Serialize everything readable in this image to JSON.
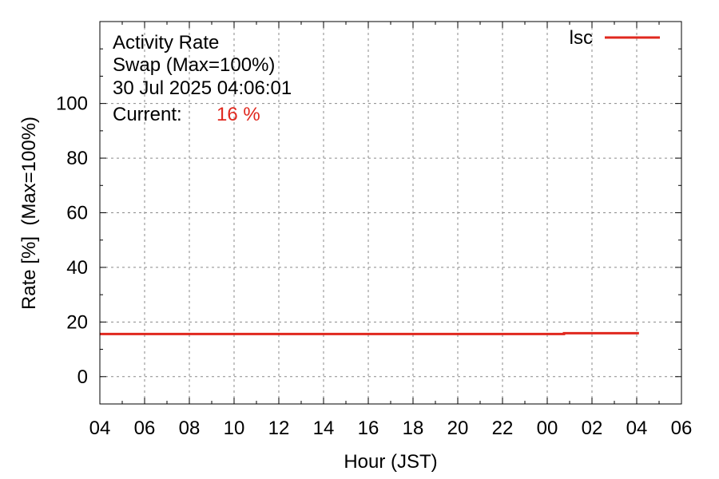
{
  "chart_data": {
    "type": "line",
    "title_lines": [
      "Activity Rate",
      "Swap (Max=100%)",
      "30 Jul 2025 04:06:01"
    ],
    "current_label": "Current:",
    "current_value": "16 %",
    "xlabel": "Hour (JST)",
    "ylabel": "Rate [%]  (Max=100%)",
    "x_tick_labels": [
      "04",
      "06",
      "08",
      "10",
      "12",
      "14",
      "16",
      "18",
      "20",
      "22",
      "00",
      "02",
      "04",
      "06"
    ],
    "xlim_hours": [
      0,
      26
    ],
    "ylim": [
      -10,
      130
    ],
    "y_ticks": [
      0,
      20,
      40,
      60,
      80,
      100
    ],
    "grid": true,
    "legend_position": "top-right",
    "series": [
      {
        "name": "lsc",
        "color": "#e0281e",
        "points": [
          [
            0,
            15.6
          ],
          [
            20.75,
            15.6
          ],
          [
            20.75,
            15.9
          ],
          [
            24.1,
            15.9
          ]
        ]
      }
    ]
  }
}
